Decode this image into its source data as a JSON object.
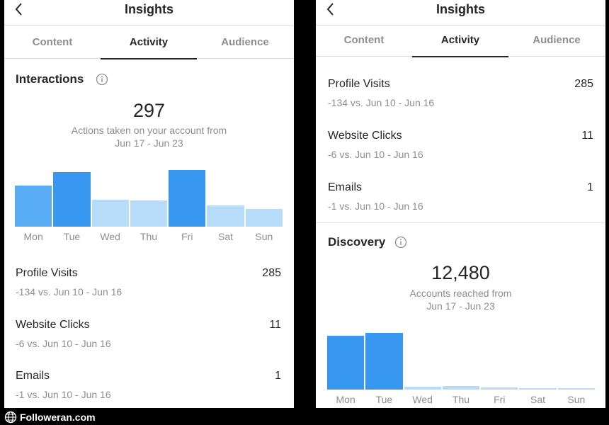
{
  "header": {
    "title": "Insights"
  },
  "tabs": [
    {
      "label": "Content"
    },
    {
      "label": "Activity",
      "active": true
    },
    {
      "label": "Audience"
    }
  ],
  "interactions": {
    "title": "Interactions",
    "total": "297",
    "caption_line1": "Actions taken on your account from",
    "caption_line2": "Jun 17 - Jun 23"
  },
  "discovery": {
    "title": "Discovery",
    "total": "12,480",
    "caption_line1": "Accounts reached from",
    "caption_line2": "Jun 17 - Jun 23"
  },
  "metrics": [
    {
      "label": "Profile Visits",
      "value": "285",
      "sub": "-134 vs. Jun 10 - Jun 16"
    },
    {
      "label": "Website Clicks",
      "value": "11",
      "sub": "-6 vs. Jun 10 - Jun 16"
    },
    {
      "label": "Emails",
      "value": "1",
      "sub": "-1 vs. Jun 10 - Jun 16"
    }
  ],
  "chart_data": [
    {
      "type": "bar",
      "chart": "interactions",
      "categories": [
        "Mon",
        "Tue",
        "Wed",
        "Thu",
        "Fri",
        "Sat",
        "Sun"
      ],
      "values": [
        54,
        72,
        36,
        35,
        75,
        28,
        23
      ],
      "highlight": [
        false,
        true,
        false,
        false,
        true,
        false,
        false
      ],
      "ylim": [
        0,
        75
      ]
    },
    {
      "type": "bar",
      "chart": "discovery",
      "categories": [
        "Mon",
        "Tue",
        "Wed",
        "Thu",
        "Fri",
        "Sat",
        "Sun"
      ],
      "values": [
        71,
        75,
        4,
        5,
        3,
        1,
        1
      ],
      "highlight": [
        true,
        true,
        false,
        false,
        false,
        false,
        false
      ],
      "ylim": [
        0,
        75
      ]
    }
  ],
  "colors": {
    "bar_strong": "#3897f0",
    "bar_medium": "#58acf4",
    "bar_light": "#b7dcfa",
    "text_primary": "#262626",
    "text_secondary": "#8e8e8e"
  },
  "watermark": {
    "text": "Followeran.com",
    "icon": "globe-icon"
  }
}
